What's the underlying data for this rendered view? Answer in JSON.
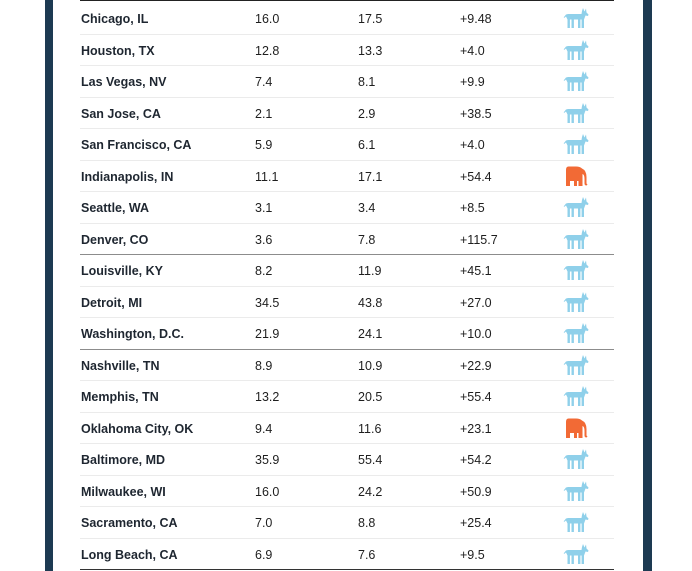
{
  "rows": [
    {
      "city": "Chicago, IL",
      "v1": "16.0",
      "v2": "17.5",
      "change": "+9.48",
      "party": "donkey",
      "sep": false
    },
    {
      "city": "Houston, TX",
      "v1": "12.8",
      "v2": "13.3",
      "change": "+4.0",
      "party": "donkey",
      "sep": false
    },
    {
      "city": "Las Vegas, NV",
      "v1": "7.4",
      "v2": "8.1",
      "change": "+9.9",
      "party": "donkey",
      "sep": false
    },
    {
      "city": "San Jose, CA",
      "v1": "2.1",
      "v2": "2.9",
      "change": "+38.5",
      "party": "donkey",
      "sep": false
    },
    {
      "city": "San Francisco, CA",
      "v1": "5.9",
      "v2": "6.1",
      "change": "+4.0",
      "party": "donkey",
      "sep": false
    },
    {
      "city": "Indianapolis, IN",
      "v1": "11.1",
      "v2": "17.1",
      "change": "+54.4",
      "party": "elephant",
      "sep": false
    },
    {
      "city": "Seattle, WA",
      "v1": "3.1",
      "v2": "3.4",
      "change": "+8.5",
      "party": "donkey",
      "sep": false
    },
    {
      "city": "Denver, CO",
      "v1": "3.6",
      "v2": "7.8",
      "change": "+115.7",
      "party": "donkey",
      "sep": true
    },
    {
      "city": "Louisville, KY",
      "v1": "8.2",
      "v2": "11.9",
      "change": "+45.1",
      "party": "donkey",
      "sep": false
    },
    {
      "city": "Detroit, MI",
      "v1": "34.5",
      "v2": "43.8",
      "change": "+27.0",
      "party": "donkey",
      "sep": false
    },
    {
      "city": "Washington, D.C.",
      "v1": "21.9",
      "v2": "24.1",
      "change": "+10.0",
      "party": "donkey",
      "sep": true
    },
    {
      "city": "Nashville, TN",
      "v1": "8.9",
      "v2": "10.9",
      "change": "+22.9",
      "party": "donkey",
      "sep": false
    },
    {
      "city": "Memphis, TN",
      "v1": "13.2",
      "v2": "20.5",
      "change": "+55.4",
      "party": "donkey",
      "sep": false
    },
    {
      "city": "Oklahoma City, OK",
      "v1": "9.4",
      "v2": "11.6",
      "change": "+23.1",
      "party": "elephant",
      "sep": false
    },
    {
      "city": "Baltimore, MD",
      "v1": "35.9",
      "v2": "55.4",
      "change": "+54.2",
      "party": "donkey",
      "sep": false
    },
    {
      "city": "Milwaukee, WI",
      "v1": "16.0",
      "v2": "24.2",
      "change": "+50.9",
      "party": "donkey",
      "sep": false
    },
    {
      "city": "Sacramento, CA",
      "v1": "7.0",
      "v2": "8.8",
      "change": "+25.4",
      "party": "donkey",
      "sep": false
    },
    {
      "city": "Long Beach, CA",
      "v1": "6.9",
      "v2": "7.6",
      "change": "+9.5",
      "party": "donkey",
      "sep": false
    }
  ],
  "colors": {
    "donkey": "#8fd0ea",
    "elephant": "#f26a35"
  }
}
